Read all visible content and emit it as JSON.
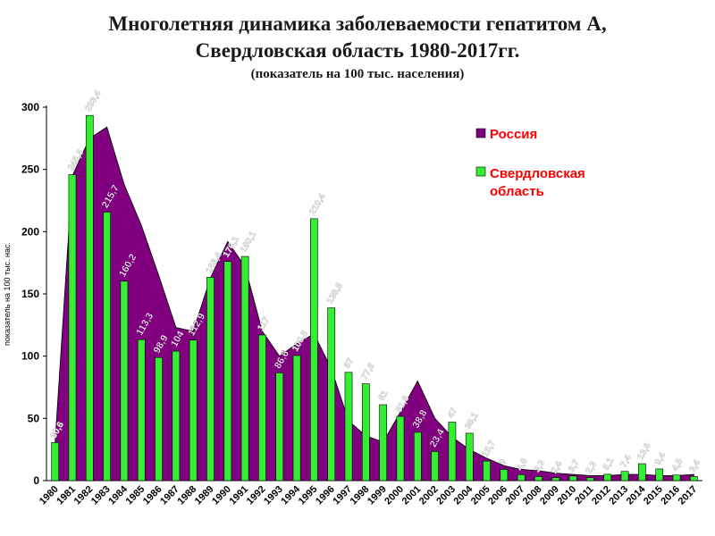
{
  "title": {
    "line1": "Многолетняя динамика заболеваемости гепатитом А,",
    "line2": "Свердловская область 1980-2017гг.",
    "line3": "(показатель на 100 тыс. населения)"
  },
  "chart_data": {
    "type": "bar",
    "ylabel": "показатель на 100 тыс. нас.",
    "ylim": [
      0,
      300
    ],
    "yticks": [
      0,
      50,
      100,
      150,
      200,
      250,
      300
    ],
    "categories": [
      "1980",
      "1981",
      "1982",
      "1983",
      "1984",
      "1985",
      "1986",
      "1987",
      "1988",
      "1989",
      "1990",
      "1991",
      "1992",
      "1993",
      "1994",
      "1995",
      "1996",
      "1997",
      "1998",
      "1999",
      "2000",
      "2001",
      "2002",
      "2003",
      "2004",
      "2005",
      "2006",
      "2007",
      "2008",
      "2009",
      "2010",
      "2011",
      "2012",
      "2013",
      "2014",
      "2015",
      "2016",
      "2017"
    ],
    "legend_position": "top-right",
    "series": [
      {
        "name": "Россия",
        "kind": "area",
        "color": "#800080",
        "values": [
          31,
          245,
          275,
          284,
          238,
          205,
          165,
          123,
          120,
          163,
          192,
          172,
          120,
          100,
          110,
          118,
          90,
          48,
          36,
          31,
          55,
          80,
          50,
          35,
          25,
          18,
          12,
          9,
          8,
          6,
          5,
          4,
          4,
          5,
          5,
          4,
          4,
          5
        ]
      },
      {
        "name": "Свердловская область",
        "kind": "bar",
        "color": "#33ee33",
        "values": [
          30.6,
          245.8,
          293.4,
          215.7,
          160.2,
          113.3,
          98.9,
          104.0,
          112.9,
          163.4,
          176.1,
          180.1,
          117.0,
          86.6,
          100.5,
          210.4,
          138.8,
          87.0,
          77.8,
          61.0,
          51.6,
          38.8,
          23.4,
          47.0,
          38.1,
          15.7,
          9.0,
          4.8,
          3.3,
          2.4,
          3.7,
          2.3,
          5.1,
          7.4,
          13.6,
          9.4,
          4.5,
          3.4
        ]
      }
    ],
    "data_labels": {
      "bar": [
        "30,6",
        "245,8",
        "293,4",
        "215,7",
        "160,2",
        "113,3",
        "98,9",
        "104",
        "112,9",
        "163,4",
        "176,1",
        "180,1",
        "117",
        "86,6",
        "100,5",
        "210,4",
        "138,8",
        "87",
        "77,8",
        "61",
        "51,6",
        "38,8",
        "23,4",
        "47",
        "38,1",
        "15,7",
        "9",
        "4,8",
        "3,3",
        "2,4",
        "3,7",
        "2,3",
        "5,1",
        "7,4",
        "13,6",
        "9,4",
        "4,5",
        "3,4"
      ],
      "bar_style": [
        "faint",
        "faint",
        "faint",
        "white",
        "white",
        "white",
        "white",
        "white",
        "white",
        "faint",
        "faint",
        "faint",
        "faint",
        "white",
        "faint",
        "faint",
        "faint",
        "faint",
        "faint",
        "faint",
        "faint",
        "white",
        "white",
        "faint",
        "faint",
        "faint",
        "faint",
        "faint",
        "faint",
        "faint",
        "faint",
        "faint",
        "faint",
        "faint",
        "faint",
        "faint",
        "faint",
        "faint"
      ]
    }
  }
}
